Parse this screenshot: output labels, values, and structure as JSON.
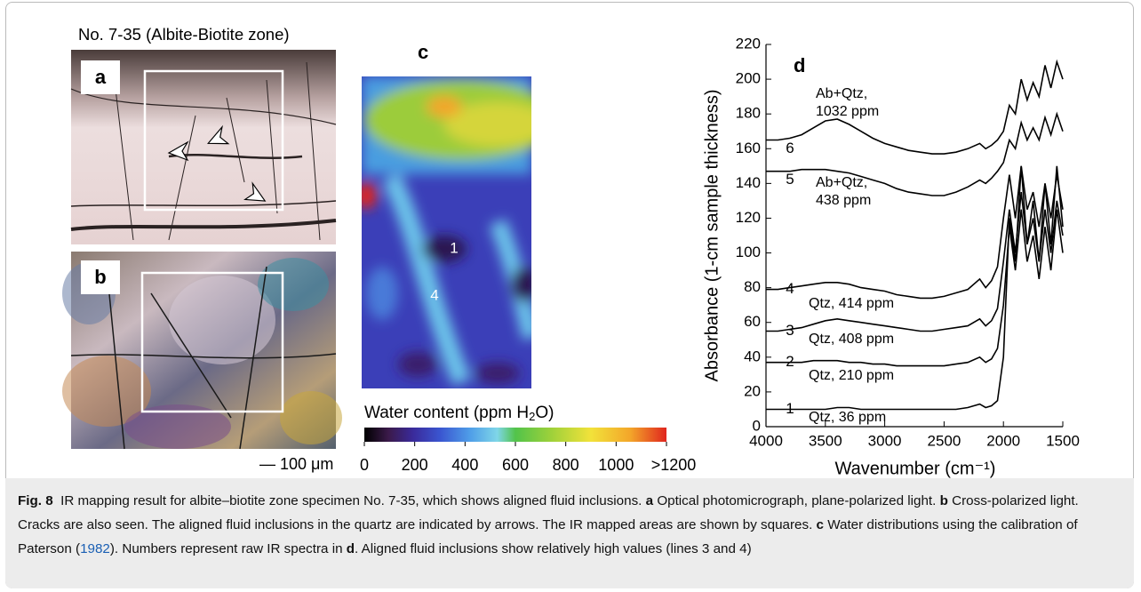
{
  "figure": {
    "left_title": "No. 7-35 (Albite-Biotite zone)",
    "a_label": "a",
    "b_label": "b",
    "c_label": "c",
    "scale_bar": "— 100 μm",
    "map_labels": [
      "1",
      "2",
      "3",
      "4",
      "5",
      "6"
    ]
  },
  "colorbar": {
    "title": "Water content (ppm H",
    "title_sub": "2",
    "title_end": "O)",
    "lim": [
      0,
      1200
    ],
    "ticks": [
      0,
      200,
      400,
      600,
      800,
      1000,
      {
        "value": 1200,
        "label": ">1200"
      }
    ]
  },
  "chart_data": {
    "type": "line",
    "panel_label": "d",
    "x_label": "Wavenumber (cm⁻¹)",
    "y_label": "Absorbance (1-cm sample thickness)",
    "xlim": [
      4000,
      1500
    ],
    "xticks": [
      4000,
      3500,
      3000,
      2500,
      2000,
      1500
    ],
    "ylim": [
      0,
      220
    ],
    "yticks": [
      0,
      20,
      40,
      60,
      80,
      100,
      120,
      140,
      160,
      180,
      200,
      220
    ],
    "x": [
      4000,
      3900,
      3800,
      3700,
      3600,
      3500,
      3400,
      3300,
      3200,
      3100,
      3000,
      2900,
      2800,
      2700,
      2600,
      2500,
      2400,
      2300,
      2200,
      2150,
      2100,
      2050,
      2000,
      1950,
      1900,
      1850,
      1800,
      1750,
      1700,
      1650,
      1600,
      1550,
      1500
    ],
    "series": [
      {
        "name": "1",
        "color": "#000000",
        "annotation": [
          "Qtz, 36 ppm"
        ],
        "values": [
          10,
          10,
          10,
          10,
          10,
          10,
          11,
          11,
          10,
          10,
          10,
          10,
          10,
          10,
          10,
          10,
          10,
          11,
          13,
          11,
          12,
          15,
          40,
          120,
          95,
          150,
          105,
          130,
          95,
          140,
          105,
          150,
          115
        ]
      },
      {
        "name": "2",
        "color": "#000000",
        "annotation": [
          "Qtz, 210 ppm"
        ],
        "values": [
          37,
          37,
          37,
          37,
          38,
          38,
          38,
          37,
          37,
          36,
          36,
          35,
          35,
          35,
          35,
          35,
          36,
          37,
          40,
          37,
          39,
          45,
          70,
          115,
          90,
          125,
          95,
          110,
          85,
          115,
          90,
          125,
          100
        ]
      },
      {
        "name": "3",
        "color": "#000000",
        "annotation": [
          "Qtz, 408 ppm"
        ],
        "values": [
          55,
          55,
          56,
          57,
          59,
          61,
          62,
          61,
          60,
          59,
          58,
          57,
          56,
          55,
          55,
          56,
          57,
          58,
          62,
          58,
          61,
          68,
          95,
          125,
          100,
          135,
          105,
          120,
          95,
          125,
          100,
          130,
          110
        ]
      },
      {
        "name": "4",
        "color": "#000000",
        "annotation": [
          "Qtz, 414 ppm"
        ],
        "values": [
          79,
          79,
          80,
          81,
          82,
          83,
          83,
          82,
          80,
          79,
          78,
          76,
          75,
          74,
          74,
          75,
          77,
          79,
          85,
          80,
          84,
          92,
          120,
          145,
          120,
          150,
          125,
          135,
          115,
          140,
          120,
          145,
          125
        ]
      },
      {
        "name": "5",
        "color": "#000000",
        "annotation": [
          "Ab+Qtz,",
          "438 ppm"
        ],
        "values": [
          147,
          147,
          147,
          148,
          148,
          148,
          147,
          146,
          144,
          142,
          140,
          137,
          135,
          134,
          133,
          133,
          135,
          138,
          142,
          140,
          143,
          147,
          152,
          165,
          160,
          175,
          165,
          172,
          165,
          178,
          168,
          180,
          170
        ]
      },
      {
        "name": "6",
        "color": "#000000",
        "annotation": [
          "Ab+Qtz,",
          "1032 ppm"
        ],
        "values": [
          165,
          165,
          166,
          168,
          172,
          176,
          177,
          174,
          170,
          166,
          163,
          161,
          159,
          158,
          157,
          157,
          158,
          160,
          163,
          160,
          162,
          165,
          170,
          185,
          180,
          200,
          188,
          198,
          190,
          208,
          195,
          210,
          200
        ]
      }
    ]
  },
  "caption": {
    "parts": [
      "Fig. 8",
      "IR mapping result for albite–biotite zone specimen No. 7-35, which shows aligned fluid inclusions.",
      "a",
      "Optical photomicrograph, plane-polarized light.",
      "b",
      "Cross-polarized light. Cracks are also seen. The aligned fluid inclusions in the quartz are indicated by arrows. The IR mapped areas are shown by squares.",
      "c",
      "Water distributions using the calibration of Paterson (",
      "1982",
      "). Numbers represent raw IR spectra in",
      "d",
      ". Aligned fluid inclusions show relatively high values (lines 3 and 4)"
    ]
  }
}
